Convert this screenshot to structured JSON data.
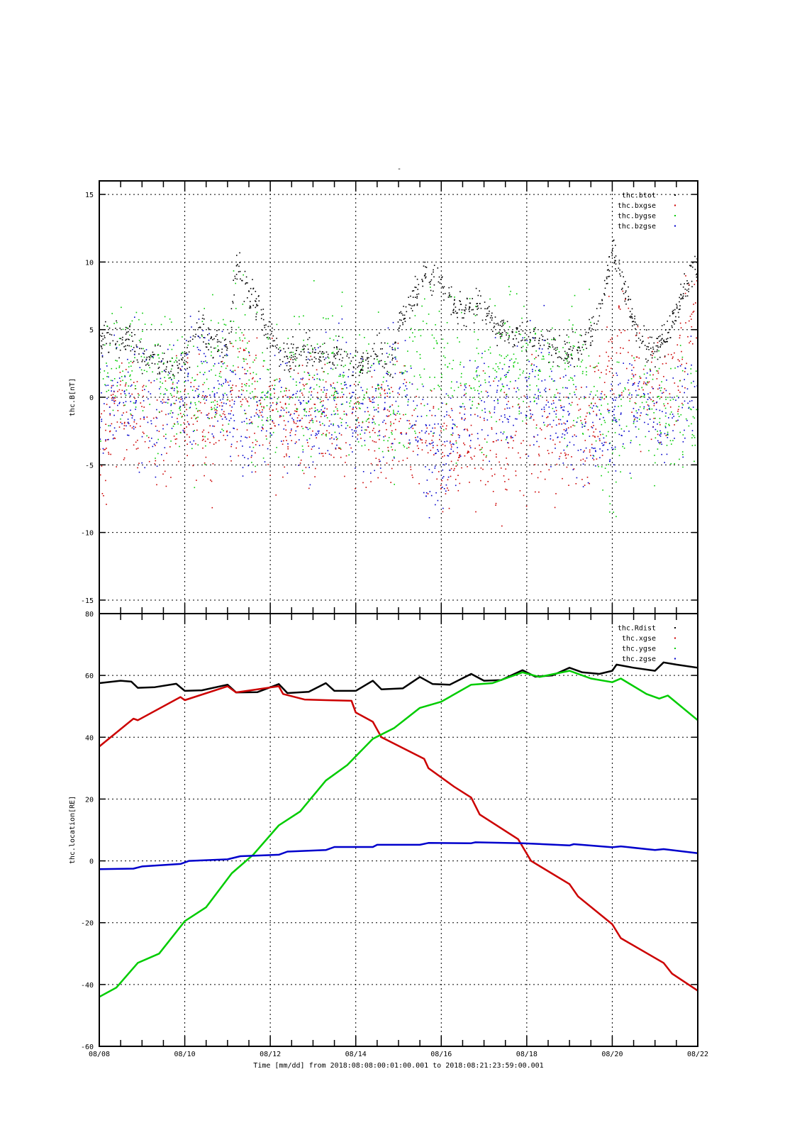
{
  "title": "-",
  "xlabel": "Time [mm/dd]  from 2018:08:08:00:01:00.001  to  2018:08:21:23:59:00.001",
  "chart_data": [
    {
      "type": "scatter",
      "ylabel": "thc.B[nT]",
      "xlim_days": [
        0,
        14
      ],
      "ylim": [
        -16,
        16
      ],
      "yticks": [
        -15,
        -10,
        -5,
        0,
        5,
        10,
        15
      ],
      "grid": true,
      "legend_position": "top-right",
      "note": "series given as approximate trend keypoints [day offset from 08/08, value] with scatter spread",
      "series": [
        {
          "name": "thc.btot",
          "color": "#000000",
          "spread": 0.6,
          "points": [
            [
              0,
              4.3
            ],
            [
              0.5,
              4.2
            ],
            [
              0.7,
              4.5
            ],
            [
              1,
              3
            ],
            [
              1.5,
              2.5
            ],
            [
              1.8,
              2.2
            ],
            [
              2.1,
              3
            ],
            [
              2.3,
              5.5
            ],
            [
              2.6,
              4
            ],
            [
              3,
              3.5
            ],
            [
              3.2,
              10
            ],
            [
              3.4,
              8
            ],
            [
              3.7,
              7
            ],
            [
              3.9,
              5
            ],
            [
              4.2,
              3
            ],
            [
              4.6,
              3.2
            ],
            [
              4.8,
              3.5
            ],
            [
              5.3,
              3
            ],
            [
              5.5,
              3.3
            ],
            [
              6,
              2
            ],
            [
              6.3,
              3
            ],
            [
              6.6,
              3.5
            ],
            [
              6.8,
              2
            ],
            [
              7,
              5.5
            ],
            [
              7.3,
              7
            ],
            [
              7.6,
              9
            ],
            [
              8,
              8.5
            ],
            [
              8.2,
              7
            ],
            [
              8.5,
              6.5
            ],
            [
              8.9,
              7
            ],
            [
              9.3,
              5
            ],
            [
              9.8,
              4.5
            ],
            [
              10.3,
              4.5
            ],
            [
              10.8,
              3.5
            ],
            [
              11.2,
              3.5
            ],
            [
              11.6,
              5.5
            ],
            [
              12,
              11
            ],
            [
              12.3,
              8
            ],
            [
              12.6,
              4.5
            ],
            [
              13,
              3.5
            ],
            [
              13.3,
              5
            ],
            [
              13.7,
              8
            ],
            [
              14,
              10
            ]
          ]
        },
        {
          "name": "thc.bxgse",
          "color": "#cc0000",
          "spread": 2.2,
          "points": [
            [
              0,
              -3.5
            ],
            [
              0.5,
              -1
            ],
            [
              1,
              -2
            ],
            [
              1.5,
              -2.5
            ],
            [
              2,
              -1
            ],
            [
              2.5,
              -3
            ],
            [
              3,
              -1
            ],
            [
              3.3,
              2
            ],
            [
              3.6,
              0
            ],
            [
              4,
              -2
            ],
            [
              4.5,
              -1
            ],
            [
              5,
              -1
            ],
            [
              5.5,
              -1
            ],
            [
              6,
              -2
            ],
            [
              6.3,
              -3
            ],
            [
              6.7,
              -3
            ],
            [
              7,
              -2
            ],
            [
              7.4,
              -2
            ],
            [
              7.8,
              -3
            ],
            [
              8.2,
              -4
            ],
            [
              8.6,
              -3
            ],
            [
              9,
              -4
            ],
            [
              9.5,
              -4
            ],
            [
              10,
              -3
            ],
            [
              10.5,
              -3
            ],
            [
              11,
              -3
            ],
            [
              11.5,
              -2
            ],
            [
              11.9,
              2
            ],
            [
              12.1,
              5
            ],
            [
              12.5,
              2
            ],
            [
              13,
              0
            ],
            [
              13.5,
              2
            ],
            [
              14,
              7
            ]
          ]
        },
        {
          "name": "thc.bygse",
          "color": "#00cc00",
          "spread": 2.6,
          "points": [
            [
              0,
              2
            ],
            [
              0.5,
              3
            ],
            [
              1,
              2
            ],
            [
              1.5,
              1
            ],
            [
              2,
              0
            ],
            [
              2.5,
              1
            ],
            [
              3,
              2
            ],
            [
              3.2,
              6
            ],
            [
              3.5,
              0
            ],
            [
              4,
              0
            ],
            [
              4.5,
              0
            ],
            [
              5,
              1
            ],
            [
              5.5,
              2
            ],
            [
              6,
              1
            ],
            [
              6.5,
              0
            ],
            [
              7,
              -1
            ],
            [
              7.3,
              2
            ],
            [
              7.6,
              3
            ],
            [
              8,
              2
            ],
            [
              8.5,
              2
            ],
            [
              9,
              1
            ],
            [
              9.5,
              3
            ],
            [
              10,
              2
            ],
            [
              10.5,
              2
            ],
            [
              11,
              2
            ],
            [
              11.5,
              1
            ],
            [
              12,
              -5
            ],
            [
              12.3,
              0
            ],
            [
              12.6,
              0
            ],
            [
              13,
              -1
            ],
            [
              13.5,
              -1
            ],
            [
              14,
              -1
            ]
          ]
        },
        {
          "name": "thc.bzgse",
          "color": "#0000cc",
          "spread": 2.2,
          "points": [
            [
              0,
              0
            ],
            [
              0.5,
              -1
            ],
            [
              1,
              0
            ],
            [
              1.5,
              -1
            ],
            [
              2,
              1
            ],
            [
              2.5,
              1
            ],
            [
              3,
              0
            ],
            [
              3.5,
              -2
            ],
            [
              4,
              0
            ],
            [
              4.5,
              -1
            ],
            [
              5,
              -1
            ],
            [
              5.5,
              0
            ],
            [
              6,
              -1
            ],
            [
              6.5,
              -0.5
            ],
            [
              7,
              1
            ],
            [
              7.5,
              -3
            ],
            [
              8,
              -4
            ],
            [
              8.5,
              -1
            ],
            [
              9,
              0
            ],
            [
              9.5,
              0
            ],
            [
              10,
              1
            ],
            [
              10.5,
              0
            ],
            [
              11,
              -2
            ],
            [
              11.5,
              -3
            ],
            [
              12,
              -2
            ],
            [
              12.5,
              0
            ],
            [
              13,
              -2
            ],
            [
              13.5,
              -1
            ],
            [
              14,
              0
            ]
          ]
        }
      ]
    },
    {
      "type": "line",
      "ylabel": "thc.location[RE]",
      "xlim_days": [
        0,
        14
      ],
      "ylim": [
        -60,
        80
      ],
      "yticks": [
        -60,
        -40,
        -20,
        0,
        20,
        40,
        60,
        80
      ],
      "xticks": [
        "08/08",
        "08/10",
        "08/12",
        "08/14",
        "08/16",
        "08/18",
        "08/20",
        "08/22"
      ],
      "grid": true,
      "legend_position": "top-right",
      "series": [
        {
          "name": "thc.Rdist",
          "color": "#000000",
          "points": [
            [
              0,
              57.5
            ],
            [
              0.5,
              58.3
            ],
            [
              0.75,
              58
            ],
            [
              0.9,
              56
            ],
            [
              1.3,
              56.2
            ],
            [
              1.8,
              57.3
            ],
            [
              2.0,
              55
            ],
            [
              2.4,
              55.2
            ],
            [
              3.0,
              57
            ],
            [
              3.2,
              54.5
            ],
            [
              3.7,
              54.6
            ],
            [
              4.2,
              57.2
            ],
            [
              4.4,
              54.3
            ],
            [
              4.9,
              54.7
            ],
            [
              5.3,
              57.5
            ],
            [
              5.5,
              55
            ],
            [
              6.0,
              55
            ],
            [
              6.4,
              58.3
            ],
            [
              6.6,
              55.5
            ],
            [
              7.1,
              55.8
            ],
            [
              7.5,
              59.5
            ],
            [
              7.8,
              57.2
            ],
            [
              8.2,
              57
            ],
            [
              8.7,
              60.5
            ],
            [
              9.0,
              58.3
            ],
            [
              9.4,
              58.5
            ],
            [
              9.9,
              61.7
            ],
            [
              10.2,
              59.6
            ],
            [
              10.6,
              60
            ],
            [
              11.0,
              62.5
            ],
            [
              11.3,
              61
            ],
            [
              11.7,
              60.5
            ],
            [
              12.0,
              61.5
            ],
            [
              12.1,
              63.5
            ],
            [
              12.5,
              62.5
            ],
            [
              13.0,
              61.5
            ],
            [
              13.2,
              64.2
            ],
            [
              13.5,
              63.5
            ],
            [
              14,
              62.5
            ]
          ]
        },
        {
          "name": "thc.xgse",
          "color": "#cc0000",
          "points": [
            [
              0,
              37
            ],
            [
              0.8,
              46
            ],
            [
              0.9,
              45.5
            ],
            [
              1.9,
              53
            ],
            [
              2.0,
              52
            ],
            [
              3.0,
              56.5
            ],
            [
              3.2,
              54.5
            ],
            [
              4.2,
              56.5
            ],
            [
              4.3,
              54
            ],
            [
              4.8,
              52.2
            ],
            [
              5.3,
              52
            ],
            [
              5.9,
              51.8
            ],
            [
              6.0,
              48
            ],
            [
              6.4,
              45
            ],
            [
              6.6,
              40
            ],
            [
              7.6,
              33
            ],
            [
              7.7,
              30
            ],
            [
              8.3,
              24
            ],
            [
              8.7,
              20.5
            ],
            [
              8.9,
              15
            ],
            [
              9.8,
              7
            ],
            [
              10.1,
              0
            ],
            [
              11.0,
              -7.5
            ],
            [
              11.2,
              -11.5
            ],
            [
              12.0,
              -20.5
            ],
            [
              12.2,
              -25
            ],
            [
              13.2,
              -33
            ],
            [
              13.4,
              -36.5
            ],
            [
              14,
              -42
            ]
          ]
        },
        {
          "name": "thc.ygse",
          "color": "#00cc00",
          "points": [
            [
              0,
              -44
            ],
            [
              0.4,
              -41
            ],
            [
              0.9,
              -33
            ],
            [
              1.4,
              -30
            ],
            [
              2.0,
              -19.5
            ],
            [
              2.5,
              -15
            ],
            [
              3.1,
              -4
            ],
            [
              3.6,
              2
            ],
            [
              4.2,
              11.5
            ],
            [
              4.7,
              16
            ],
            [
              5.3,
              26
            ],
            [
              5.8,
              31
            ],
            [
              6.4,
              39.5
            ],
            [
              6.9,
              43
            ],
            [
              7.5,
              49.5
            ],
            [
              8.0,
              51.5
            ],
            [
              8.7,
              57
            ],
            [
              9.2,
              57.5
            ],
            [
              9.9,
              61
            ],
            [
              10.3,
              59.5
            ],
            [
              11.0,
              61.5
            ],
            [
              11.5,
              59
            ],
            [
              12.0,
              57.8
            ],
            [
              12.2,
              59
            ],
            [
              12.8,
              54
            ],
            [
              13.1,
              52.5
            ],
            [
              13.3,
              53.5
            ],
            [
              14,
              45.5
            ]
          ]
        },
        {
          "name": "thc.zgse",
          "color": "#0000cc",
          "points": [
            [
              0,
              -2.7
            ],
            [
              0.8,
              -2.5
            ],
            [
              1.0,
              -1.8
            ],
            [
              1.9,
              -1
            ],
            [
              2.1,
              0
            ],
            [
              3.0,
              0.5
            ],
            [
              3.3,
              1.5
            ],
            [
              4.2,
              2
            ],
            [
              4.4,
              3
            ],
            [
              5.3,
              3.5
            ],
            [
              5.5,
              4.5
            ],
            [
              6.4,
              4.5
            ],
            [
              6.5,
              5.2
            ],
            [
              7.5,
              5.2
            ],
            [
              7.7,
              5.8
            ],
            [
              8.7,
              5.7
            ],
            [
              8.8,
              6
            ],
            [
              9.9,
              5.7
            ],
            [
              11,
              5
            ],
            [
              11.1,
              5.4
            ],
            [
              12,
              4.4
            ],
            [
              12.2,
              4.7
            ],
            [
              13,
              3.5
            ],
            [
              13.2,
              3.8
            ],
            [
              14,
              2.5
            ]
          ]
        }
      ]
    }
  ]
}
